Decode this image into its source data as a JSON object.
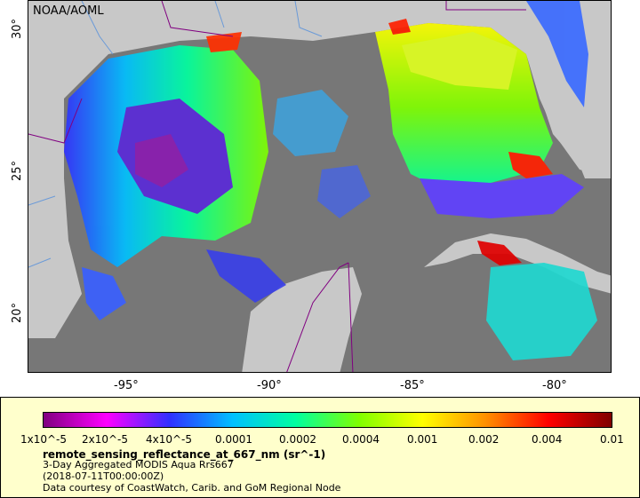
{
  "map": {
    "credit_overlay": "NOAA/AOML",
    "x_ticks": [
      "-95°",
      "-90°",
      "-85°",
      "-80°"
    ],
    "y_ticks": [
      "30°",
      "25°",
      "20°"
    ],
    "x_tick_values": [
      -95,
      -90,
      -85,
      -80
    ],
    "y_tick_values": [
      30,
      25,
      20
    ],
    "lon_range": [
      -99,
      -78
    ],
    "lat_range": [
      18,
      31
    ],
    "colors": {
      "land": "#c8c8c8",
      "no_data_ocean": "#777777",
      "border": "#800080",
      "river": "#6a9ad8"
    }
  },
  "legend": {
    "colorbar_labels": [
      "1x10^-5",
      "2x10^-5",
      "4x10^-5",
      "0.0001",
      "0.0002",
      "0.0004",
      "0.001",
      "0.002",
      "0.004",
      "0.01"
    ],
    "colorbar_stops": [
      "#800080",
      "#ff00ff",
      "#3030ff",
      "#00c0ff",
      "#00ffa0",
      "#80ff00",
      "#ffff00",
      "#ff9000",
      "#ff0000",
      "#800000"
    ],
    "title": "remote_sensing_reflectance_at_667_nm (sr^-1)",
    "line1": "3-Day Aggregated MODIS Aqua Rrs667",
    "line2": "(2018-07-11T00:00:00Z)",
    "line3": "Data courtesy of CoastWatch, Carib. and GoM Regional Node"
  }
}
